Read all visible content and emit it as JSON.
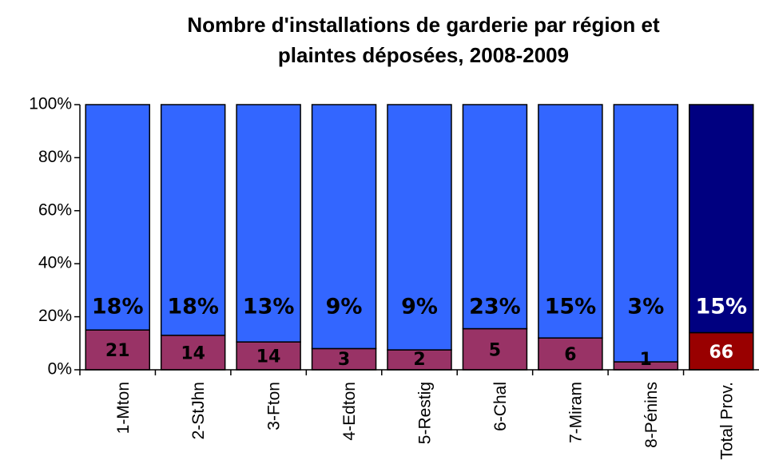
{
  "chart_data": {
    "type": "stacked_bar_100",
    "title": "Nombre d'installations de garderie par région et plaintes déposées, 2008-2009",
    "categories": [
      "1-Mton",
      "2-StJhn",
      "3-Fton",
      "4-Edton",
      "5-Restig",
      "6-Chal",
      "7-Miram",
      "8-Pénins",
      "Total Prov."
    ],
    "series": [
      {
        "values": [
          15,
          13,
          10.5,
          8,
          7.5,
          15.5,
          12,
          3,
          14
        ],
        "colors": [
          "#993366",
          "#993366",
          "#993366",
          "#993366",
          "#993366",
          "#993366",
          "#993366",
          "#993366",
          "#990000"
        ]
      },
      {
        "values": [
          85,
          87,
          89.5,
          92,
          92.5,
          84.5,
          88,
          97,
          86
        ],
        "colors": [
          "#3366ff",
          "#3366ff",
          "#3366ff",
          "#3366ff",
          "#3366ff",
          "#3366ff",
          "#3366ff",
          "#3366ff",
          "#000080"
        ]
      }
    ],
    "counts": [
      21,
      14,
      14,
      3,
      2,
      5,
      6,
      1,
      66
    ],
    "rate_labels": [
      "18%",
      "18%",
      "13%",
      "9%",
      "9%",
      "23%",
      "15%",
      "3%",
      "15%"
    ],
    "ylim": [
      0,
      100
    ],
    "yticks": [
      {
        "value": 0,
        "label": "0%"
      },
      {
        "value": 20,
        "label": "20%"
      },
      {
        "value": 40,
        "label": "40%"
      },
      {
        "value": 60,
        "label": "60%"
      },
      {
        "value": 80,
        "label": "80%"
      },
      {
        "value": 100,
        "label": "100%"
      }
    ]
  }
}
